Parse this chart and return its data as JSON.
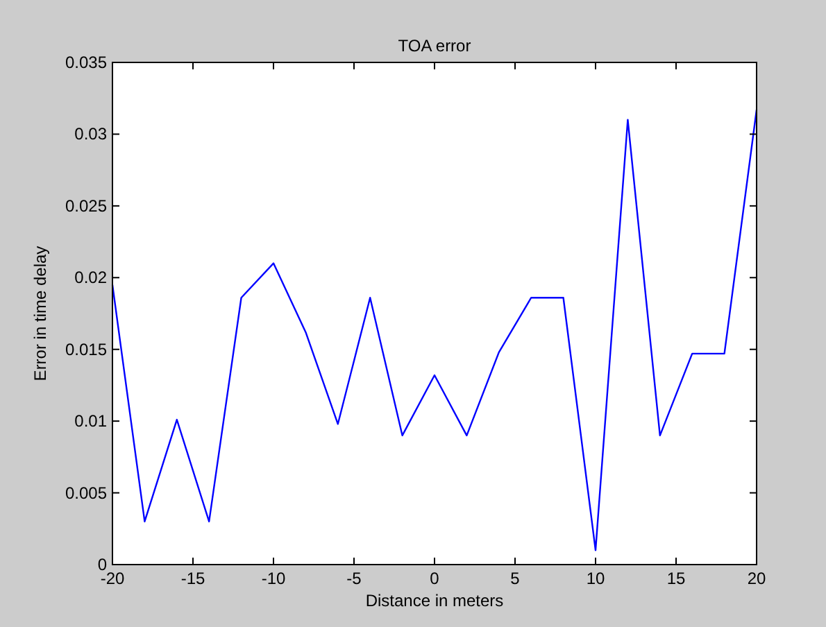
{
  "chart_data": {
    "type": "line",
    "title": "TOA error",
    "xlabel": "Distance in meters",
    "ylabel": "Error in time delay",
    "x": [
      -20,
      -18,
      -16,
      -14,
      -12,
      -10,
      -8,
      -6,
      -4,
      -2,
      0,
      2,
      4,
      6,
      8,
      10,
      12,
      14,
      16,
      18,
      20
    ],
    "series": [
      {
        "color": "#0000ff",
        "values": [
          0.0195,
          0.003,
          0.0101,
          0.003,
          0.0186,
          0.021,
          0.0162,
          0.0098,
          0.0186,
          0.009,
          0.0132,
          0.009,
          0.0148,
          0.0186,
          0.0186,
          0.001,
          0.031,
          0.009,
          0.0147,
          0.0147,
          0.0317
        ]
      }
    ],
    "xlim": [
      -20,
      20
    ],
    "xticks": [
      -20,
      -15,
      -10,
      -5,
      0,
      5,
      10,
      15,
      20
    ],
    "ylim": [
      0,
      0.035
    ],
    "yticks": [
      0,
      0.005,
      0.01,
      0.015,
      0.02,
      0.025,
      0.03,
      0.035
    ],
    "grid": false,
    "marker": "none",
    "line_style": "solid"
  }
}
